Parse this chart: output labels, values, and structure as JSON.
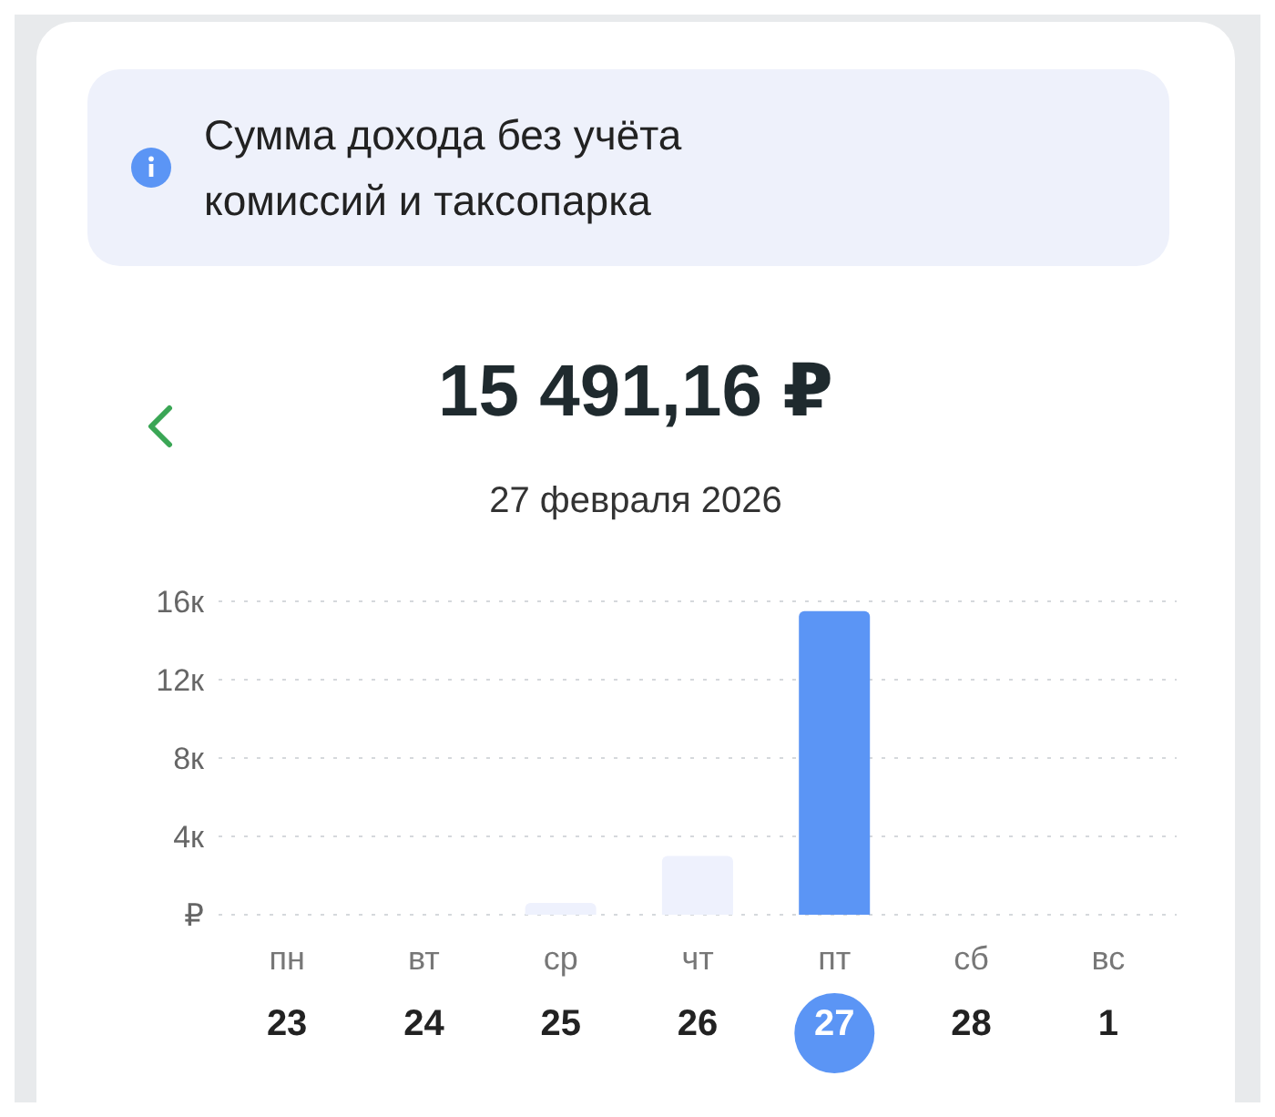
{
  "chart_data": {
    "type": "bar",
    "title": "15 491,16 ₽",
    "subtitle": "27 февраля 2026",
    "annotations": [
      "Сумма дохода без учёта комиссий и таксопарка"
    ],
    "categories": [
      "пн\n23",
      "вт\n24",
      "ср\n25",
      "чт\n26",
      "пт\n27",
      "сб\n28",
      "вс\n1"
    ],
    "values": [
      0,
      0,
      0.6,
      3,
      15.5,
      0,
      0
    ],
    "colors": [
      "#eef1fd",
      "#eef1fd",
      "#eef1fd",
      "#eef1fd",
      "#5b95f5",
      "#eef1fd",
      "#eef1fd"
    ],
    "ylim": [
      0,
      16
    ],
    "yticks": [
      {
        "value": 0,
        "label": "₽"
      },
      {
        "value": 4,
        "label": "4к"
      },
      {
        "value": 8,
        "label": "8к"
      },
      {
        "value": 12,
        "label": "12к"
      },
      {
        "value": 16,
        "label": "16к"
      }
    ],
    "grid": "y",
    "legend": false
  }
}
